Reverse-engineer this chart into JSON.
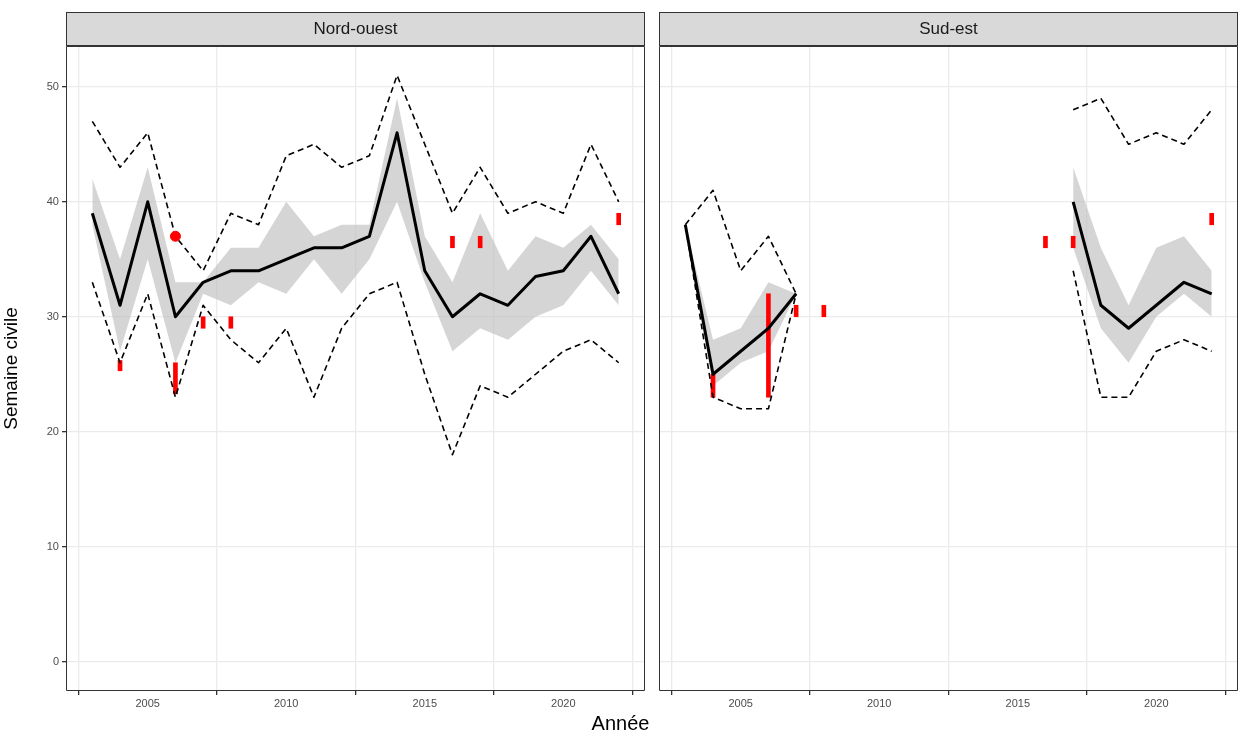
{
  "chart_data": [
    {
      "type": "line",
      "title": "Nord-ouest",
      "xlabel": "Année",
      "ylabel": "Semaine civile",
      "x": [
        2003,
        2004,
        2005,
        2006,
        2007,
        2008,
        2009,
        2010,
        2011,
        2012,
        2013,
        2014,
        2015,
        2016,
        2017,
        2018,
        2019,
        2020,
        2021,
        2022
      ],
      "xlim": [
        2002.05,
        2022.95
      ],
      "xticks": [
        2005,
        2010,
        2015,
        2020
      ],
      "ylim": [
        -2.55,
        53.55
      ],
      "yticks": [
        0,
        10,
        20,
        30,
        40,
        50
      ],
      "grid": true,
      "series": [
        {
          "color": "#000000",
          "line_style": "solid",
          "values": [
            39,
            31,
            40,
            30,
            33,
            34,
            34,
            35,
            36,
            36,
            37,
            46,
            34,
            30,
            32,
            31,
            33.5,
            34,
            37,
            32
          ],
          "lower": [
            38,
            27,
            35,
            26,
            32,
            31,
            33,
            32,
            35,
            32,
            35,
            40,
            33,
            27,
            29,
            28,
            30,
            31,
            34,
            31
          ],
          "upper": [
            42,
            35,
            43,
            33,
            33,
            36,
            36,
            40,
            37,
            38,
            38,
            49,
            37,
            33,
            39,
            34,
            37,
            36,
            38,
            35
          ]
        },
        {
          "color": "#000000",
          "line_style": "dashed",
          "values": [
            47,
            43,
            46,
            37,
            34,
            39,
            38,
            44,
            45,
            43,
            44,
            51,
            45,
            39,
            43,
            39,
            40,
            39,
            45,
            40
          ]
        },
        {
          "color": "#000000",
          "line_style": "dashed",
          "values": [
            33,
            26,
            32,
            23,
            31,
            28,
            26,
            29,
            23,
            29,
            32,
            33,
            25,
            18,
            24,
            23,
            25,
            27,
            28,
            26
          ]
        },
        {
          "type": "bar",
          "color": "#ff0000",
          "x": [
            2004,
            2006,
            2007,
            2008,
            2016,
            2017,
            2022
          ],
          "base": [
            25.3,
            23.3,
            29,
            29,
            36,
            36,
            38
          ],
          "values": [
            0.9,
            2.7,
            1,
            1,
            1,
            1,
            1
          ]
        },
        {
          "type": "scatter",
          "color": "#ff0000",
          "marker": "circle",
          "x": [
            2006
          ],
          "values": [
            37
          ]
        }
      ]
    },
    {
      "type": "line",
      "title": "Sud-est",
      "x": [
        2003,
        2004,
        2005,
        2006,
        2007,
        2008,
        2009,
        2010,
        2011,
        2012,
        2013,
        2014,
        2015,
        2016,
        2017,
        2018,
        2019,
        2020,
        2021,
        2022
      ],
      "xlim": [
        2002.05,
        2022.95
      ],
      "xticks": [
        2005,
        2010,
        2015,
        2020
      ],
      "ylim": [
        -2.55,
        53.55
      ],
      "yticks": [
        0,
        10,
        20,
        30,
        40,
        50
      ],
      "grid": true,
      "tick_labels": "x",
      "series": [
        {
          "color": "#000000",
          "line_style": "solid",
          "values": [
            38,
            25,
            27,
            29,
            32,
            null,
            null,
            null,
            null,
            null,
            null,
            null,
            null,
            null,
            40,
            31,
            29,
            31,
            33,
            32
          ],
          "lower": [
            38,
            24,
            26,
            27,
            32,
            null,
            null,
            null,
            null,
            null,
            null,
            null,
            null,
            null,
            36,
            29,
            26,
            30,
            32,
            30
          ],
          "upper": [
            38,
            28,
            29,
            33,
            32,
            null,
            null,
            null,
            null,
            null,
            null,
            null,
            null,
            null,
            43,
            36,
            31,
            36,
            37,
            34
          ]
        },
        {
          "color": "#000000",
          "line_style": "dashed",
          "values": [
            38,
            41,
            34,
            37,
            32,
            null,
            null,
            null,
            null,
            null,
            null,
            null,
            null,
            null,
            48,
            49,
            45,
            46,
            45,
            48
          ]
        },
        {
          "color": "#000000",
          "line_style": "dashed",
          "values": [
            38,
            23,
            22,
            22,
            32,
            null,
            null,
            null,
            null,
            null,
            null,
            null,
            null,
            null,
            34,
            23,
            23,
            27,
            28,
            27
          ]
        },
        {
          "type": "bar",
          "color": "#ff0000",
          "x": [
            2004,
            2006,
            2007,
            2008,
            2016,
            2017,
            2022
          ],
          "base": [
            23,
            23,
            30,
            30,
            36,
            36,
            38
          ],
          "values": [
            2,
            9,
            1,
            1,
            1,
            1,
            1
          ]
        }
      ]
    }
  ]
}
